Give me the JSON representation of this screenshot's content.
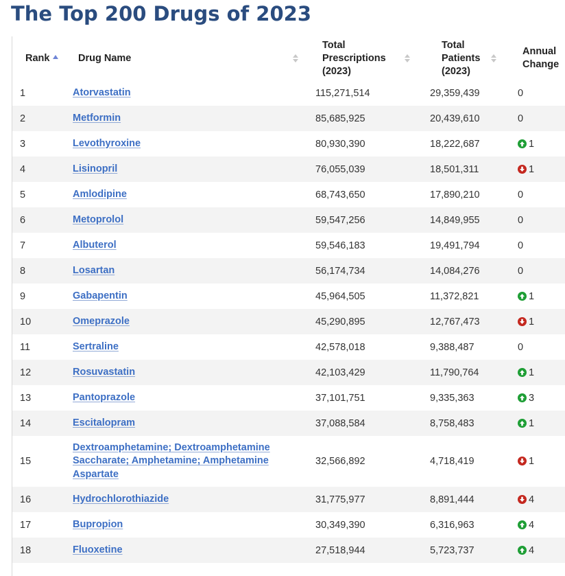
{
  "page": {
    "title": "The Top 200 Drugs of 2023"
  },
  "colors": {
    "title": "#2a4c7f",
    "link": "#3d6fc4",
    "increase": "#1e9e35",
    "decrease": "#c4281f",
    "row_stripe": "#f3f3f3"
  },
  "table": {
    "headers": {
      "rank": "Rank",
      "drug_name": "Drug Name",
      "prescriptions": "Total Prescriptions (2023)",
      "patients": "Total Patients (2023)",
      "change": "Annual Change"
    },
    "rows": [
      {
        "rank": "1",
        "name": "Atorvastatin",
        "prescriptions": "115,271,514",
        "patients": "29,359,439",
        "change": "0",
        "direction": "none"
      },
      {
        "rank": "2",
        "name": "Metformin",
        "prescriptions": "85,685,925",
        "patients": "20,439,610",
        "change": "0",
        "direction": "none"
      },
      {
        "rank": "3",
        "name": "Levothyroxine",
        "prescriptions": "80,930,390",
        "patients": "18,222,687",
        "change": "1",
        "direction": "up"
      },
      {
        "rank": "4",
        "name": "Lisinopril",
        "prescriptions": "76,055,039",
        "patients": "18,501,311",
        "change": "1",
        "direction": "down"
      },
      {
        "rank": "5",
        "name": "Amlodipine",
        "prescriptions": "68,743,650",
        "patients": "17,890,210",
        "change": "0",
        "direction": "none"
      },
      {
        "rank": "6",
        "name": "Metoprolol",
        "prescriptions": "59,547,256",
        "patients": "14,849,955",
        "change": "0",
        "direction": "none"
      },
      {
        "rank": "7",
        "name": "Albuterol",
        "prescriptions": "59,546,183",
        "patients": "19,491,794",
        "change": "0",
        "direction": "none"
      },
      {
        "rank": "8",
        "name": "Losartan",
        "prescriptions": "56,174,734",
        "patients": "14,084,276",
        "change": "0",
        "direction": "none"
      },
      {
        "rank": "9",
        "name": "Gabapentin",
        "prescriptions": "45,964,505",
        "patients": "11,372,821",
        "change": "1",
        "direction": "up"
      },
      {
        "rank": "10",
        "name": "Omeprazole",
        "prescriptions": "45,290,895",
        "patients": "12,767,473",
        "change": "1",
        "direction": "down"
      },
      {
        "rank": "11",
        "name": "Sertraline",
        "prescriptions": "42,578,018",
        "patients": "9,388,487",
        "change": "0",
        "direction": "none"
      },
      {
        "rank": "12",
        "name": "Rosuvastatin",
        "prescriptions": "42,103,429",
        "patients": "11,790,764",
        "change": "1",
        "direction": "up"
      },
      {
        "rank": "13",
        "name": "Pantoprazole",
        "prescriptions": "37,101,751",
        "patients": "9,335,363",
        "change": "3",
        "direction": "up"
      },
      {
        "rank": "14",
        "name": "Escitalopram",
        "prescriptions": "37,088,584",
        "patients": "8,758,483",
        "change": "1",
        "direction": "up"
      },
      {
        "rank": "15",
        "name": "Dextroamphetamine; Dextroamphetamine Saccharate; Amphetamine; Amphetamine Aspartate",
        "prescriptions": "32,566,892",
        "patients": "4,718,419",
        "change": "1",
        "direction": "down"
      },
      {
        "rank": "16",
        "name": "Hydrochlorothiazide",
        "prescriptions": "31,775,977",
        "patients": "8,891,444",
        "change": "4",
        "direction": "down"
      },
      {
        "rank": "17",
        "name": "Bupropion",
        "prescriptions": "30,349,390",
        "patients": "6,316,963",
        "change": "4",
        "direction": "up"
      },
      {
        "rank": "18",
        "name": "Fluoxetine",
        "prescriptions": "27,518,944",
        "patients": "5,723,737",
        "change": "4",
        "direction": "up"
      }
    ]
  }
}
